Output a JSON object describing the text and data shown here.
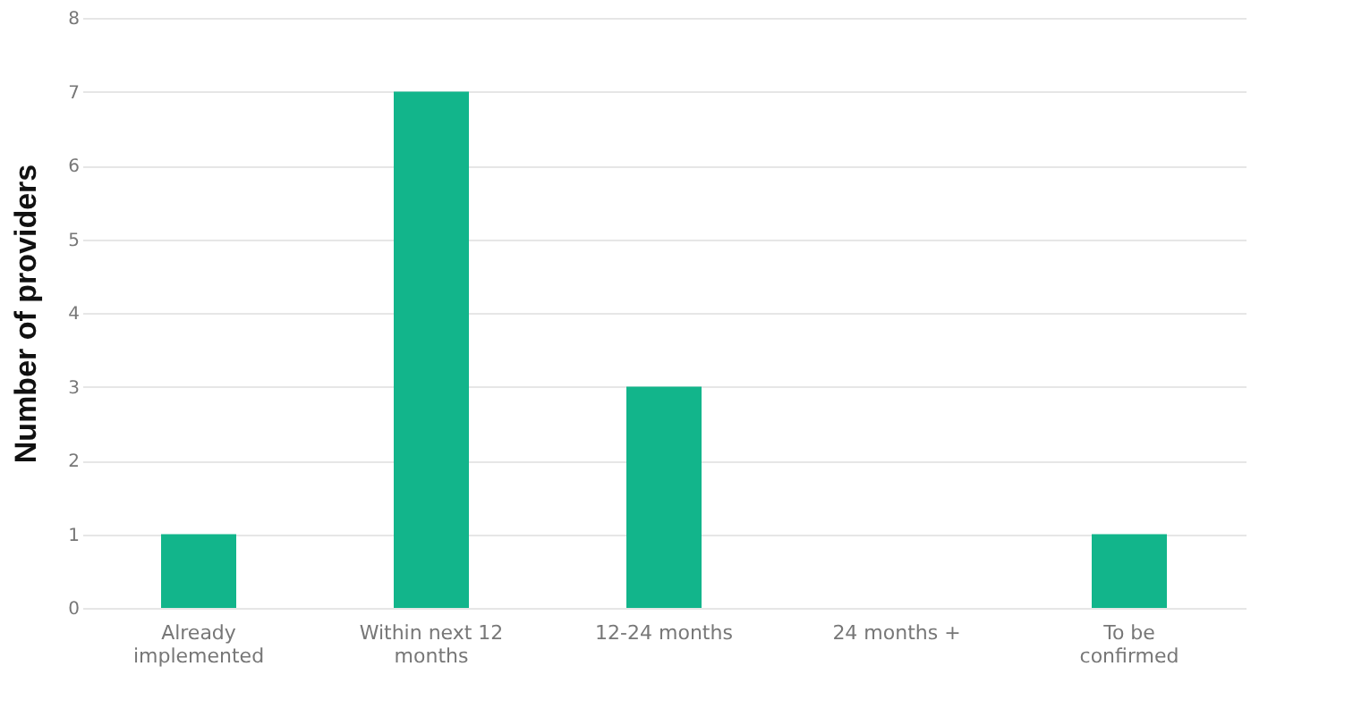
{
  "chart_data": {
    "type": "bar",
    "ylabel": "Number of providers",
    "categories": [
      "Already implemented",
      "Within next 12 months",
      "12-24 months",
      "24 months +",
      "To be confirmed"
    ],
    "values": [
      1,
      7,
      3,
      0,
      1
    ],
    "color": "#12b58b",
    "ylim": [
      0,
      8
    ],
    "yticks": [
      0,
      1,
      2,
      3,
      4,
      5,
      6,
      7,
      8
    ],
    "grid": "y"
  }
}
